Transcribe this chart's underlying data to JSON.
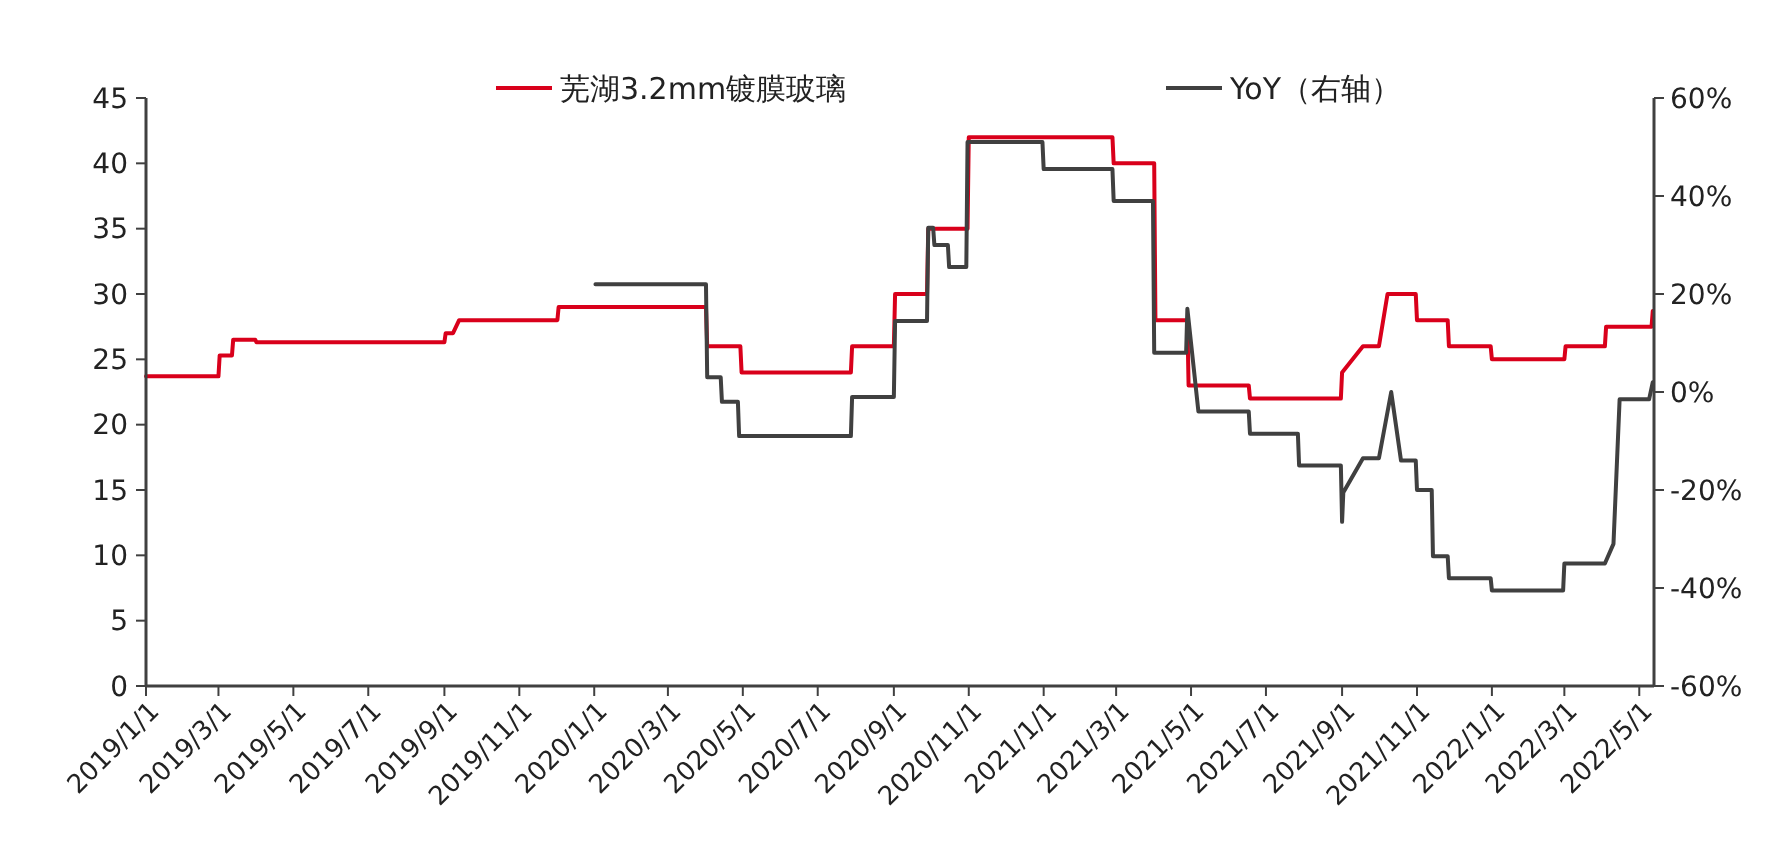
{
  "chart_data": {
    "type": "line",
    "legend": "top",
    "xlim": [
      "2019-01-01",
      "2022-05-13"
    ],
    "xticks": [
      {
        "value": "2019-01-01",
        "label": "2019/1/1"
      },
      {
        "value": "2019-03-01",
        "label": "2019/3/1"
      },
      {
        "value": "2019-05-01",
        "label": "2019/5/1"
      },
      {
        "value": "2019-07-01",
        "label": "2019/7/1"
      },
      {
        "value": "2019-09-01",
        "label": "2019/9/1"
      },
      {
        "value": "2019-11-01",
        "label": "2019/11/1"
      },
      {
        "value": "2020-01-01",
        "label": "2020/1/1"
      },
      {
        "value": "2020-03-01",
        "label": "2020/3/1"
      },
      {
        "value": "2020-05-01",
        "label": "2020/5/1"
      },
      {
        "value": "2020-07-01",
        "label": "2020/7/1"
      },
      {
        "value": "2020-09-01",
        "label": "2020/9/1"
      },
      {
        "value": "2020-11-01",
        "label": "2020/11/1"
      },
      {
        "value": "2021-01-01",
        "label": "2021/1/1"
      },
      {
        "value": "2021-03-01",
        "label": "2021/3/1"
      },
      {
        "value": "2021-05-01",
        "label": "2021/5/1"
      },
      {
        "value": "2021-07-01",
        "label": "2021/7/1"
      },
      {
        "value": "2021-09-01",
        "label": "2021/9/1"
      },
      {
        "value": "2021-11-01",
        "label": "2021/11/1"
      },
      {
        "value": "2022-01-01",
        "label": "2022/1/1"
      },
      {
        "value": "2022-03-01",
        "label": "2022/3/1"
      },
      {
        "value": "2022-05-01",
        "label": "2022/5/1"
      }
    ],
    "ylim": [
      0,
      45
    ],
    "yticks": [
      0,
      5,
      10,
      15,
      20,
      25,
      30,
      35,
      40,
      45
    ],
    "y2lim": [
      -60,
      60
    ],
    "y2ticks": [
      {
        "value": -60,
        "label": "-60%"
      },
      {
        "value": -40,
        "label": "-40%"
      },
      {
        "value": -20,
        "label": "-20%"
      },
      {
        "value": 0,
        "label": "0%"
      },
      {
        "value": 20,
        "label": "20%"
      },
      {
        "value": 40,
        "label": "40%"
      },
      {
        "value": 60,
        "label": "60%"
      }
    ],
    "series": [
      {
        "name": "芜湖3.2mm镀膜玻璃",
        "color": "#d9001b",
        "x": [
          "2019-01-01",
          "2019-03-01",
          "2019-03-02",
          "2019-03-12",
          "2019-03-13",
          "2019-03-31",
          "2019-04-01",
          "2019-09-01",
          "2019-09-02",
          "2019-09-08",
          "2019-09-13",
          "2019-12-02",
          "2019-12-03",
          "2020-04-01",
          "2020-04-02",
          "2020-04-29",
          "2020-04-30",
          "2020-07-28",
          "2020-07-29",
          "2020-09-01",
          "2020-09-02",
          "2020-09-28",
          "2020-09-29",
          "2020-10-31",
          "2020-11-01",
          "2021-02-26",
          "2021-02-27",
          "2021-04-01",
          "2021-04-02",
          "2021-04-28",
          "2021-04-29",
          "2021-06-17",
          "2021-06-18",
          "2021-08-31",
          "2021-09-01",
          "2021-09-18",
          "2021-10-01",
          "2021-10-08",
          "2021-10-31",
          "2021-11-01",
          "2021-11-26",
          "2021-11-27",
          "2021-12-31",
          "2022-01-01",
          "2022-03-01",
          "2022-03-02",
          "2022-04-03",
          "2022-04-04",
          "2022-05-11",
          "2022-05-12"
        ],
        "values": [
          23.7,
          23.7,
          25.3,
          25.3,
          26.5,
          26.5,
          26.3,
          26.3,
          27,
          27,
          28,
          28,
          29,
          29,
          26,
          26,
          24,
          24,
          26,
          26,
          30,
          30,
          35,
          35,
          42,
          42,
          40,
          40,
          28,
          28,
          23,
          23,
          22,
          22,
          24,
          26,
          26,
          30,
          30,
          28,
          28,
          26,
          26,
          25,
          25,
          26,
          26,
          27.5,
          27.5,
          28.7
        ]
      },
      {
        "name": "YoY（右轴）",
        "color": "#404040",
        "axis": "y2",
        "x": [
          "2020-01-02",
          "2020-04-01",
          "2020-04-02",
          "2020-04-13",
          "2020-04-14",
          "2020-04-27",
          "2020-04-28",
          "2020-07-28",
          "2020-07-29",
          "2020-09-01",
          "2020-09-02",
          "2020-09-28",
          "2020-09-29",
          "2020-10-03",
          "2020-10-04",
          "2020-10-15",
          "2020-10-16",
          "2020-10-30",
          "2020-10-31",
          "2020-12-31",
          "2021-01-01",
          "2021-02-26",
          "2021-02-27",
          "2021-03-31",
          "2021-04-01",
          "2021-04-27",
          "2021-04-28",
          "2021-05-07",
          "2021-06-17",
          "2021-06-18",
          "2021-07-27",
          "2021-07-28",
          "2021-08-31",
          "2021-09-01",
          "2021-09-02",
          "2021-09-18",
          "2021-10-01",
          "2021-10-11",
          "2021-10-19",
          "2021-10-31",
          "2021-11-01",
          "2021-11-13",
          "2021-11-14",
          "2021-11-26",
          "2021-11-27",
          "2021-12-31",
          "2022-01-01",
          "2022-02-28",
          "2022-03-01",
          "2022-04-03",
          "2022-04-10",
          "2022-04-15",
          "2022-05-09",
          "2022-05-12"
        ],
        "values": [
          22,
          22,
          3,
          3,
          -2,
          -2,
          -9,
          -9,
          -1,
          -1,
          14.5,
          14.5,
          33.5,
          33.5,
          30,
          30,
          25.5,
          25.5,
          51,
          51,
          45.5,
          45.5,
          39,
          39,
          8,
          8,
          17,
          -4,
          -4,
          -8.5,
          -8.5,
          -15,
          -15,
          -26.5,
          -20.5,
          -13.5,
          -13.5,
          0,
          -14,
          -14,
          -20,
          -20,
          -33.5,
          -33.5,
          -38,
          -38,
          -40.5,
          -40.5,
          -35,
          -35,
          -31,
          -1.5,
          -1.5,
          2
        ]
      }
    ]
  }
}
